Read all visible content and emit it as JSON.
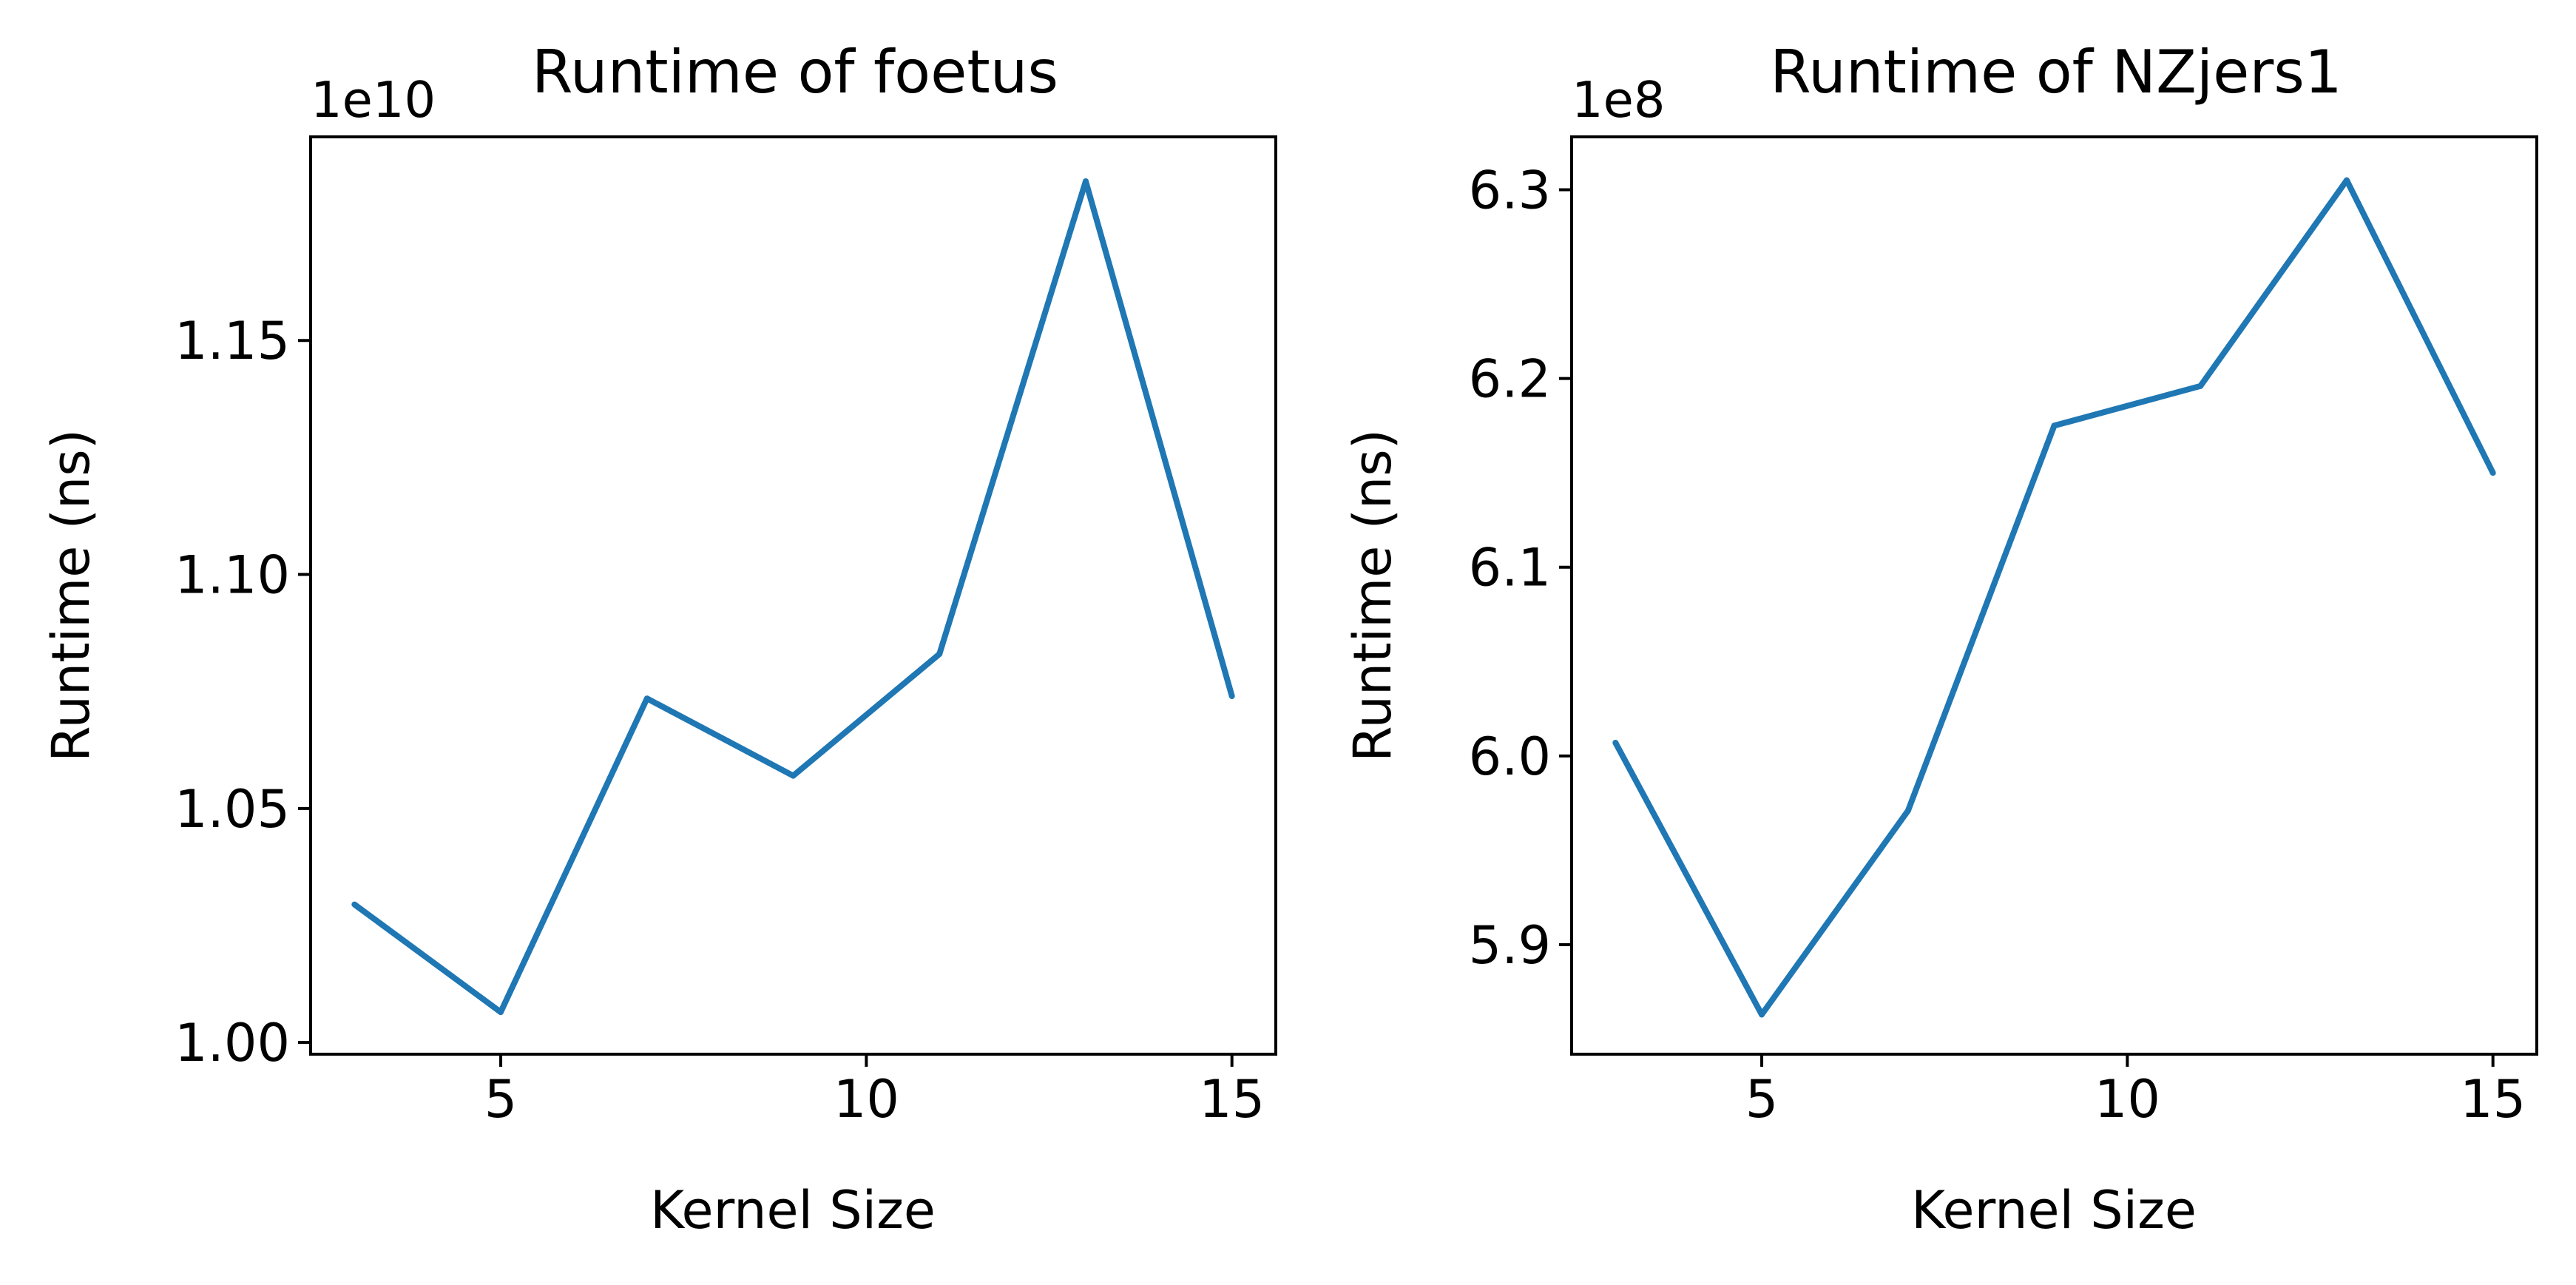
{
  "colors": {
    "line": "#1f77b4",
    "axes": "#000000",
    "background": "#ffffff"
  },
  "chart_data": [
    {
      "type": "line",
      "title": "Runtime of foetus",
      "xlabel": "Kernel Size",
      "ylabel": "Runtime (ns)",
      "offset_label": "1e10",
      "grid": false,
      "xlim": [
        2.4,
        15.6
      ],
      "ylim": [
        0.9975,
        1.1935
      ],
      "xticks": [
        5,
        10,
        15
      ],
      "xtick_labels": [
        "5",
        "10",
        "15"
      ],
      "yticks": [
        1.0,
        1.05,
        1.1,
        1.15
      ],
      "ytick_labels": [
        "1.00",
        "1.05",
        "1.10",
        "1.15"
      ],
      "series": [
        {
          "x": [
            3,
            5,
            7,
            9,
            11,
            13,
            15
          ],
          "values": [
            1.0295,
            1.0065,
            1.0735,
            1.057,
            1.083,
            1.184,
            1.074
          ]
        }
      ]
    },
    {
      "type": "line",
      "title": "Runtime of NZjers1",
      "xlabel": "Kernel Size",
      "ylabel": "Runtime (ns)",
      "offset_label": "1e8",
      "grid": false,
      "xlim": [
        2.4,
        15.6
      ],
      "ylim": [
        5.842,
        6.328
      ],
      "xticks": [
        5,
        10,
        15
      ],
      "xtick_labels": [
        "5",
        "10",
        "15"
      ],
      "yticks": [
        5.9,
        6.0,
        6.1,
        6.2,
        6.3
      ],
      "ytick_labels": [
        "5.9",
        "6.0",
        "6.1",
        "6.2",
        "6.3"
      ],
      "series": [
        {
          "x": [
            3,
            5,
            7,
            9,
            11,
            13,
            15
          ],
          "values": [
            6.007,
            5.863,
            5.971,
            6.175,
            6.196,
            6.305,
            6.15
          ]
        }
      ]
    }
  ]
}
